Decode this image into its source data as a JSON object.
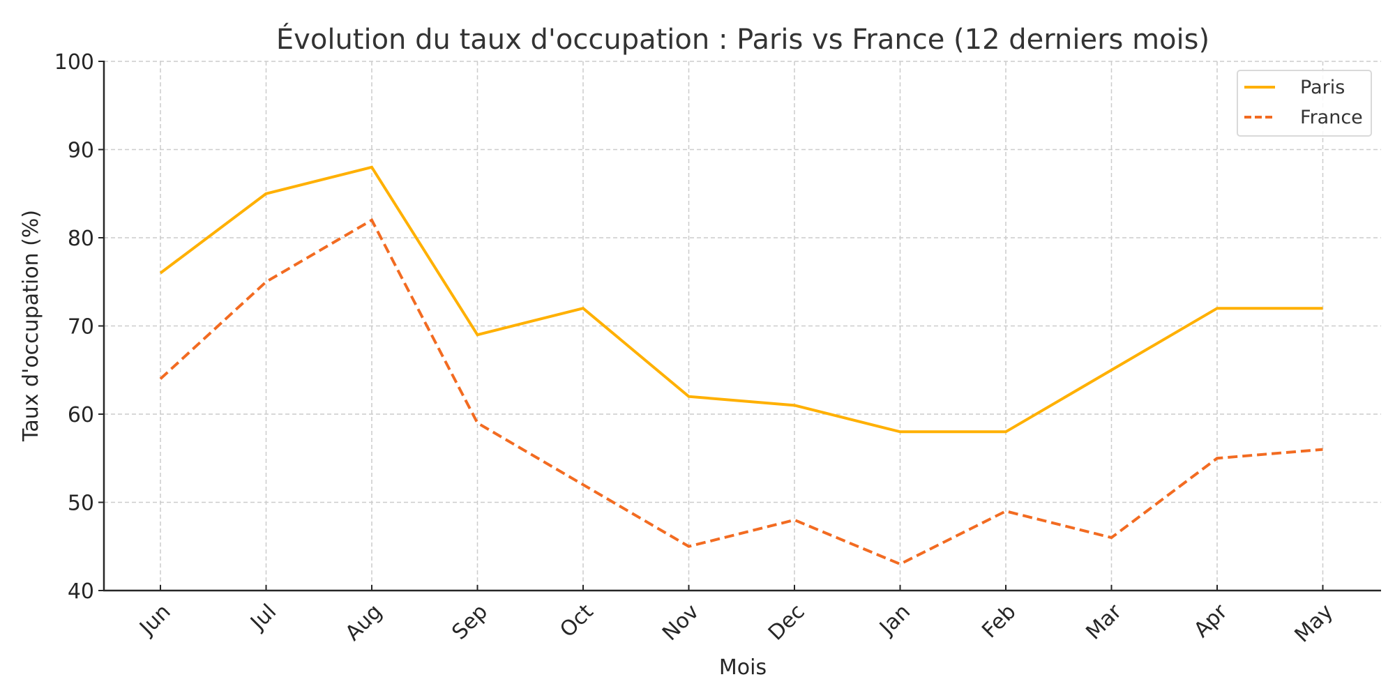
{
  "chart_data": {
    "type": "line",
    "title": "Évolution du taux d'occupation : Paris vs France (12 derniers mois)",
    "xlabel": "Mois",
    "ylabel": "Taux d'occupation (%)",
    "categories": [
      "Jun",
      "Jul",
      "Aug",
      "Sep",
      "Oct",
      "Nov",
      "Dec",
      "Jan",
      "Feb",
      "Mar",
      "Apr",
      "May"
    ],
    "series": [
      {
        "name": "Paris",
        "color": "#FFB000",
        "style": "solid",
        "values": [
          76,
          85,
          88,
          69,
          72,
          62,
          61,
          58,
          58,
          65,
          72,
          72
        ]
      },
      {
        "name": "France",
        "color": "#F26B21",
        "style": "dashed",
        "values": [
          64,
          75,
          82,
          59,
          52,
          45,
          48,
          43,
          49,
          46,
          55,
          56
        ]
      }
    ],
    "ylim": [
      40,
      100
    ],
    "yticks": [
      40,
      50,
      60,
      70,
      80,
      90,
      100
    ],
    "grid": true,
    "legend_position": "upper right",
    "xtick_rotation": 45
  }
}
